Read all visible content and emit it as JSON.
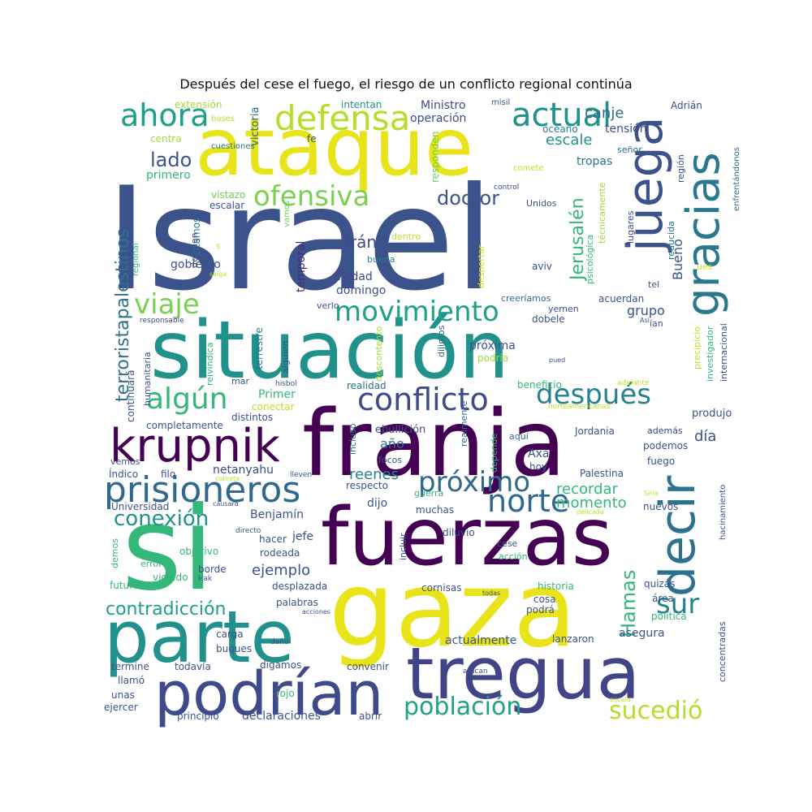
{
  "title": "Después del cese el fuego, el riesgo de un conflicto regional continúa",
  "palette": "viridis",
  "words": [
    {
      "text": "Israel",
      "color": "#3b528b"
    },
    {
      "text": "ataque",
      "color": "#e8e419"
    },
    {
      "text": "situación",
      "color": "#21918c"
    },
    {
      "text": "franja",
      "color": "#440154"
    },
    {
      "text": "fuerzas",
      "color": "#440154"
    },
    {
      "text": "gaza",
      "color": "#e8e419"
    },
    {
      "text": "si",
      "color": "#35b779"
    },
    {
      "text": "parte",
      "color": "#21918c"
    },
    {
      "text": "tregua",
      "color": "#414487"
    },
    {
      "text": "podrían",
      "color": "#3e4a89"
    },
    {
      "text": "krupnik",
      "color": "#440154"
    },
    {
      "text": "prisioneros",
      "color": "#31688e"
    },
    {
      "text": "juega",
      "color": "#3b528b"
    },
    {
      "text": "gracias",
      "color": "#2a788e"
    },
    {
      "text": "decir",
      "color": "#2c728e"
    },
    {
      "text": "defensa",
      "color": "#b5de2b"
    },
    {
      "text": "actual",
      "color": "#21918c"
    },
    {
      "text": "ahora",
      "color": "#1f9e89"
    },
    {
      "text": "ofensiva",
      "color": "#7ad151"
    },
    {
      "text": "movimiento",
      "color": "#1fa188"
    },
    {
      "text": "conflicto",
      "color": "#3e4a89"
    },
    {
      "text": "después",
      "color": "#26828e"
    },
    {
      "text": "algún",
      "color": "#35b779"
    },
    {
      "text": "viaje",
      "color": "#7ad151"
    },
    {
      "text": "próximo",
      "color": "#31688e"
    },
    {
      "text": "norte",
      "color": "#31688e"
    },
    {
      "text": "población",
      "color": "#1fa188"
    },
    {
      "text": "sucedió",
      "color": "#b5de2b"
    },
    {
      "text": "sur",
      "color": "#26828e"
    },
    {
      "text": "Hamas",
      "color": "#35b779"
    },
    {
      "text": "conexión",
      "color": "#21918c"
    },
    {
      "text": "contradicción",
      "color": "#1f9e89"
    },
    {
      "text": "terroristapalestinos",
      "color": "#2c728e"
    },
    {
      "text": "lado",
      "color": "#3b528b"
    },
    {
      "text": "doctor",
      "color": "#3b528b"
    },
    {
      "text": "Irán",
      "color": "#3e4a89"
    },
    {
      "text": "Jerusalén",
      "color": "#35b779"
    },
    {
      "text": "canje",
      "color": "#31688e"
    },
    {
      "text": "escale",
      "color": "#21918c"
    },
    {
      "text": "tensión",
      "color": "#3b528b"
    },
    {
      "text": "tropas",
      "color": "#2c728e"
    },
    {
      "text": "operación",
      "color": "#3e4a89"
    },
    {
      "text": "Ministro",
      "color": "#3e4a89"
    },
    {
      "text": "intentan",
      "color": "#21918c"
    },
    {
      "text": "misil",
      "color": "#3b528b"
    },
    {
      "text": "Adrián",
      "color": "#3e4a89"
    },
    {
      "text": "océano",
      "color": "#26828e"
    },
    {
      "text": "señor",
      "color": "#2c728e"
    },
    {
      "text": "región",
      "color": "#3e4a89"
    },
    {
      "text": "enfrentándonos",
      "color": "#31688e"
    },
    {
      "text": "extensión",
      "color": "#a0da39"
    },
    {
      "text": "bases",
      "color": "#b5de2b"
    },
    {
      "text": "victoria",
      "color": "#31688e"
    },
    {
      "text": "fe",
      "color": "#3b528b"
    },
    {
      "text": "centra",
      "color": "#a0da39"
    },
    {
      "text": "cuestiones",
      "color": "#2c728e"
    },
    {
      "text": "primero",
      "color": "#35b779"
    },
    {
      "text": "responden",
      "color": "#6ece58"
    },
    {
      "text": "comete",
      "color": "#bddf26"
    },
    {
      "text": "control",
      "color": "#3e4a89"
    },
    {
      "text": "Unidos",
      "color": "#3b528b"
    },
    {
      "text": "vistazo",
      "color": "#6ece58"
    },
    {
      "text": "escalar",
      "color": "#3b528b"
    },
    {
      "text": "vamos",
      "color": "#6ece58"
    },
    {
      "text": "citamos",
      "color": "#2a788e"
    },
    {
      "text": "deciden",
      "color": "#3e4a89"
    },
    {
      "text": "regional",
      "color": "#35b779"
    },
    {
      "text": "temporal",
      "color": "#472d7b"
    },
    {
      "text": "dentro",
      "color": "#bddf26"
    },
    {
      "text": "buena",
      "color": "#26828e"
    },
    {
      "text": "despertar",
      "color": "#d8e219"
    },
    {
      "text": "técnicamente",
      "color": "#a0da39"
    },
    {
      "text": "psicológica",
      "color": "#35b779"
    },
    {
      "text": "lugares",
      "color": "#3e4a89"
    },
    {
      "text": "reducida",
      "color": "#2c728e"
    },
    {
      "text": "Bueno",
      "color": "#3b528b"
    },
    {
      "text": "gobierno",
      "color": "#3b528b"
    },
    {
      "text": "ciudad",
      "color": "#3e4a89"
    },
    {
      "text": "domingo",
      "color": "#3b528b"
    },
    {
      "text": "aviv",
      "color": "#3b528b"
    },
    {
      "text": "ues",
      "color": "#d8e219"
    },
    {
      "text": "tel",
      "color": "#3b528b"
    },
    {
      "text": "grupo",
      "color": "#3b528b"
    },
    {
      "text": "acuerdan",
      "color": "#3b528b"
    },
    {
      "text": "creeríamos",
      "color": "#31688e"
    },
    {
      "text": "yemen",
      "color": "#3e4a89"
    },
    {
      "text": "dobele",
      "color": "#3b528b"
    },
    {
      "text": "verlo",
      "color": "#3b528b"
    },
    {
      "text": "responsable",
      "color": "#3e4a89"
    },
    {
      "text": "precipicio",
      "color": "#bddf26"
    },
    {
      "text": "investigador",
      "color": "#35b779"
    },
    {
      "text": "internacional",
      "color": "#3b528b"
    },
    {
      "text": "próxima",
      "color": "#3b528b"
    },
    {
      "text": "podría",
      "color": "#a0da39"
    },
    {
      "text": "dijimos",
      "color": "#31688e"
    },
    {
      "text": "terrestre",
      "color": "#2a788e"
    },
    {
      "text": "reivindica",
      "color": "#35b779"
    },
    {
      "text": "alguien",
      "color": "#3b528b"
    },
    {
      "text": "descontento",
      "color": "#a0da39"
    },
    {
      "text": "humanitaria",
      "color": "#3b528b"
    },
    {
      "text": "continuará",
      "color": "#3b528b"
    },
    {
      "text": "realidad",
      "color": "#2c728e"
    },
    {
      "text": "beneficio",
      "color": "#35b779"
    },
    {
      "text": "adelante",
      "color": "#bddf26"
    },
    {
      "text": "norteamericanas",
      "color": "#bddf26"
    },
    {
      "text": "conectar",
      "color": "#bddf26"
    },
    {
      "text": "distintos",
      "color": "#3b528b"
    },
    {
      "text": "Primer",
      "color": "#35b779"
    },
    {
      "text": "produjo",
      "color": "#3b528b"
    },
    {
      "text": "ebullición",
      "color": "#3b528b"
    },
    {
      "text": "incluso",
      "color": "#2c728e"
    },
    {
      "text": "realmente",
      "color": "#31688e"
    },
    {
      "text": "completamente",
      "color": "#3b528b"
    },
    {
      "text": "día",
      "color": "#3b528b"
    },
    {
      "text": "Jordania",
      "color": "#3b528b"
    },
    {
      "text": "además",
      "color": "#3e4a89"
    },
    {
      "text": "año",
      "color": "#2c728e"
    },
    {
      "text": "aquí",
      "color": "#31688e"
    },
    {
      "text": "podemos",
      "color": "#3b528b"
    },
    {
      "text": "vemos",
      "color": "#3b528b"
    },
    {
      "text": "netanyahu",
      "color": "#3e4a89"
    },
    {
      "text": "focos",
      "color": "#3b528b"
    },
    {
      "text": "Axa",
      "color": "#3b528b"
    },
    {
      "text": "depende",
      "color": "#35b779"
    },
    {
      "text": "hoy",
      "color": "#3b528b"
    },
    {
      "text": "fuego",
      "color": "#3b528b"
    },
    {
      "text": "Índico",
      "color": "#3b528b"
    },
    {
      "text": "filo",
      "color": "#3b528b"
    },
    {
      "text": "lleven",
      "color": "#3b528b"
    },
    {
      "text": "reenes",
      "color": "#26828e"
    },
    {
      "text": "Palestina",
      "color": "#3b528b"
    },
    {
      "text": "hacinamiento",
      "color": "#3b528b"
    },
    {
      "text": "cometa",
      "color": "#bddf26"
    },
    {
      "text": "respecto",
      "color": "#3b528b"
    },
    {
      "text": "recordar",
      "color": "#35b779"
    },
    {
      "text": "guerra",
      "color": "#35b779"
    },
    {
      "text": "Siria",
      "color": "#bddf26"
    },
    {
      "text": "delicada",
      "color": "#bddf26"
    },
    {
      "text": "Universidad",
      "color": "#3b528b"
    },
    {
      "text": "causara",
      "color": "#3b528b"
    },
    {
      "text": "Benjamín",
      "color": "#3b528b"
    },
    {
      "text": "momento",
      "color": "#35b779"
    },
    {
      "text": "dijo",
      "color": "#3b528b"
    },
    {
      "text": "muchas",
      "color": "#3b528b"
    },
    {
      "text": "nuevos",
      "color": "#3b528b"
    },
    {
      "text": "directo",
      "color": "#3b528b"
    },
    {
      "text": "diluvio",
      "color": "#3b528b"
    },
    {
      "text": "demos",
      "color": "#35b779"
    },
    {
      "text": "hacer",
      "color": "#3b528b"
    },
    {
      "text": "jefe",
      "color": "#3b528b"
    },
    {
      "text": "incluir",
      "color": "#3b528b"
    },
    {
      "text": "cese",
      "color": "#3b528b"
    },
    {
      "text": "objetivo",
      "color": "#35b779"
    },
    {
      "text": "rodeada",
      "color": "#3b528b"
    },
    {
      "text": "acción",
      "color": "#35b779"
    },
    {
      "text": "error",
      "color": "#35b779"
    },
    {
      "text": "borde",
      "color": "#3b528b"
    },
    {
      "text": "ejemplo",
      "color": "#3b528b"
    },
    {
      "text": "Irak",
      "color": "#3b528b"
    },
    {
      "text": "violado",
      "color": "#35b779"
    },
    {
      "text": "futuro",
      "color": "#35b779"
    },
    {
      "text": "desplazada",
      "color": "#3b528b"
    },
    {
      "text": "cornisas",
      "color": "#3b528b"
    },
    {
      "text": "todas",
      "color": "#3b528b"
    },
    {
      "text": "historia",
      "color": "#35b779"
    },
    {
      "text": "quizás",
      "color": "#3b528b"
    },
    {
      "text": "palabras",
      "color": "#3b528b"
    },
    {
      "text": "acciones",
      "color": "#3b528b"
    },
    {
      "text": "cosa",
      "color": "#3b528b"
    },
    {
      "text": "área",
      "color": "#3b528b"
    },
    {
      "text": "podrá",
      "color": "#3b528b"
    },
    {
      "text": "política",
      "color": "#35b779"
    },
    {
      "text": "carga",
      "color": "#3b528b"
    },
    {
      "text": "asegura",
      "color": "#3b528b"
    },
    {
      "text": "concentradas",
      "color": "#3b528b"
    },
    {
      "text": "actualmente",
      "color": "#3b528b"
    },
    {
      "text": "lanzaron",
      "color": "#3b528b"
    },
    {
      "text": "buques",
      "color": "#3b528b"
    },
    {
      "text": "daño",
      "color": "#3b528b"
    },
    {
      "text": "termine",
      "color": "#3b528b"
    },
    {
      "text": "todavía",
      "color": "#3b528b"
    },
    {
      "text": "digamos",
      "color": "#3b528b"
    },
    {
      "text": "convenir",
      "color": "#3b528b"
    },
    {
      "text": "atacan",
      "color": "#3b528b"
    },
    {
      "text": "llamó",
      "color": "#3b528b"
    },
    {
      "text": "rojo",
      "color": "#35b779"
    },
    {
      "text": "unas",
      "color": "#3b528b"
    },
    {
      "text": "escala",
      "color": "#bddf26"
    },
    {
      "text": "ejercer",
      "color": "#3b528b"
    },
    {
      "text": "principio",
      "color": "#3b528b"
    },
    {
      "text": "declaraciones",
      "color": "#3b528b"
    },
    {
      "text": "abrir",
      "color": "#3b528b"
    },
    {
      "text": "s",
      "color": "#bddf26"
    },
    {
      "text": "saiga",
      "color": "#bddf26"
    },
    {
      "text": "Así",
      "color": "#3b528b"
    },
    {
      "text": "pued",
      "color": "#3b528b"
    },
    {
      "text": "mar",
      "color": "#3b528b"
    },
    {
      "text": "hisbol",
      "color": "#3b528b"
    },
    {
      "text": "ían",
      "color": "#3b528b"
    }
  ]
}
